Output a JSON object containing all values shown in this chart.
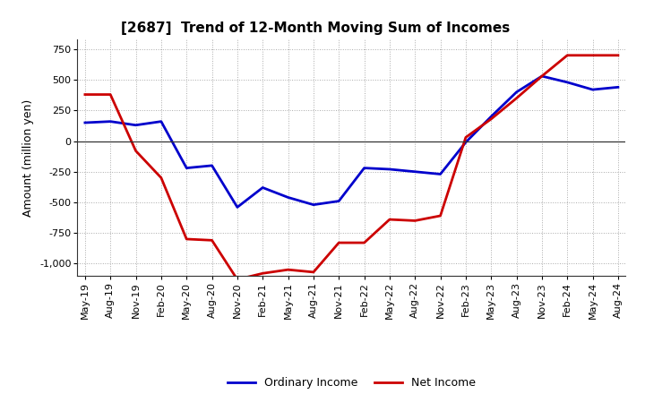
{
  "title": "[2687]  Trend of 12-Month Moving Sum of Incomes",
  "ylabel": "Amount (million yen)",
  "background_color": "#ffffff",
  "grid_color": "#aaaaaa",
  "x_labels": [
    "May-19",
    "Aug-19",
    "Nov-19",
    "Feb-20",
    "May-20",
    "Aug-20",
    "Nov-20",
    "Feb-21",
    "May-21",
    "Aug-21",
    "Nov-21",
    "Feb-22",
    "May-22",
    "Aug-22",
    "Nov-22",
    "Feb-23",
    "May-23",
    "Aug-23",
    "Nov-23",
    "Feb-24",
    "May-24",
    "Aug-24"
  ],
  "ordinary_income": [
    150,
    160,
    130,
    160,
    -220,
    -200,
    -540,
    -380,
    -460,
    -520,
    -490,
    -220,
    -230,
    -250,
    -270,
    -10,
    200,
    400,
    530,
    480,
    420,
    440
  ],
  "net_income": [
    380,
    380,
    -80,
    -300,
    -800,
    -810,
    -1130,
    -1080,
    -1050,
    -1070,
    -830,
    -830,
    -640,
    -650,
    -610,
    30,
    180,
    350,
    530,
    700,
    700,
    700
  ],
  "ylim": [
    -1100,
    830
  ],
  "yticks": [
    -1000,
    -750,
    -500,
    -250,
    0,
    250,
    500,
    750
  ],
  "ordinary_color": "#0000cc",
  "net_color": "#cc0000",
  "line_width": 2.0,
  "title_fontsize": 11,
  "tick_fontsize": 8,
  "ylabel_fontsize": 9,
  "legend_fontsize": 9
}
